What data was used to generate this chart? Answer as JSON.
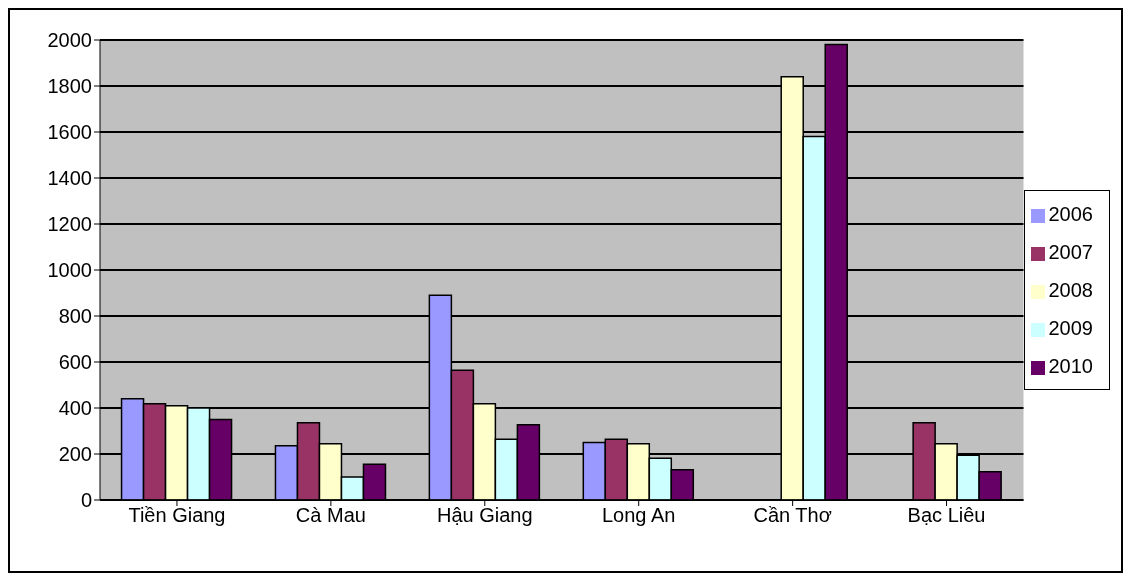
{
  "chart_data": {
    "type": "bar",
    "categories": [
      "Tiền Giang",
      "Cà Mau",
      "Hậu Giang",
      "Long An",
      "Cần Thơ",
      "Bạc Liêu"
    ],
    "series": [
      {
        "name": "2006",
        "color": "#9999ff",
        "values": [
          440,
          236,
          890,
          250,
          null,
          null
        ]
      },
      {
        "name": "2007",
        "color": "#993366",
        "values": [
          418,
          336,
          564,
          264,
          null,
          336
        ]
      },
      {
        "name": "2008",
        "color": "#ffffcc",
        "values": [
          410,
          245,
          418,
          245,
          1840,
          245
        ]
      },
      {
        "name": "2009",
        "color": "#ccffff",
        "values": [
          400,
          100,
          264,
          182,
          1580,
          195
        ]
      },
      {
        "name": "2010",
        "color": "#660066",
        "values": [
          350,
          155,
          327,
          132,
          1980,
          123
        ]
      }
    ],
    "ylim": [
      0,
      2000
    ],
    "yticks": [
      0,
      200,
      400,
      600,
      800,
      1000,
      1200,
      1400,
      1600,
      1800,
      2000
    ],
    "grid": "y",
    "legend": "right"
  }
}
